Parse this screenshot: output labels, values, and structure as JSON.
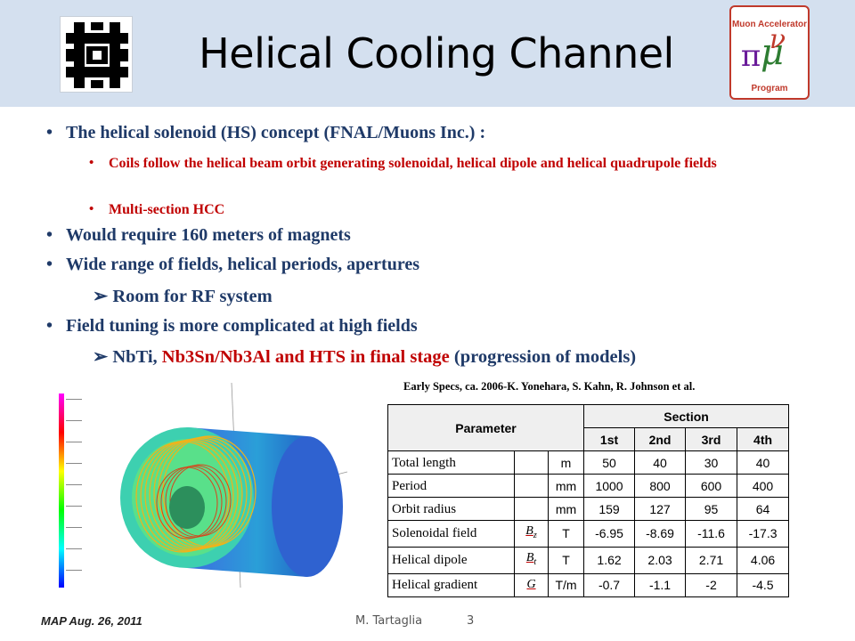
{
  "slide": {
    "title": "Helical Cooling Channel"
  },
  "logos": {
    "map_logo_text": "Muon Accelerator Program",
    "map_logo_symbols": "νπμ"
  },
  "content": {
    "b1": "The helical solenoid (HS) concept (FNAL/Muons Inc.) :",
    "b1_sub1": "Coils follow the helical beam orbit generating solenoidal, helical dipole and helical quadrupole fields",
    "b1_sub2": "Multi-section HCC",
    "b2": "Would require 160 meters of magnets",
    "b3": "Wide range of fields, helical periods, apertures",
    "b3_arrow": "Room for RF system",
    "b4": "Field tuning is more complicated at high fields",
    "b4_arrow_a": "NbTi, ",
    "b4_arrow_b": "Nb3Sn/Nb3Al and HTS in final stage",
    "b4_arrow_c": " (progression of models)"
  },
  "table": {
    "caption": "Early Specs, ca. 2006-K. Yonehara, S. Kahn, R. Johnson et al.",
    "param_header": "Parameter",
    "section_header": "Section",
    "sections": [
      "1st",
      "2nd",
      "3rd",
      "4th"
    ],
    "rows": [
      {
        "name": "Total length",
        "symbol": "",
        "unit": "m",
        "values": [
          "50",
          "40",
          "30",
          "40"
        ]
      },
      {
        "name": "Period",
        "symbol": "",
        "unit": "mm",
        "values": [
          "1000",
          "800",
          "600",
          "400"
        ]
      },
      {
        "name": "Orbit radius",
        "symbol": "",
        "unit": "mm",
        "values": [
          "159",
          "127",
          "95",
          "64"
        ]
      },
      {
        "name": "Solenoidal field",
        "symbol": "Bz",
        "unit": "T",
        "values": [
          "-6.95",
          "-8.69",
          "-11.6",
          "-17.3"
        ]
      },
      {
        "name": "Helical dipole",
        "symbol": "Bt",
        "unit": "T",
        "values": [
          "1.62",
          "2.03",
          "2.71",
          "4.06"
        ]
      },
      {
        "name": "Helical gradient",
        "symbol": "G",
        "unit": "T/m",
        "values": [
          "-0.7",
          "-1.1",
          "-2",
          "-4.5"
        ]
      }
    ]
  },
  "colors": {
    "header_bg": "#d4e0ef",
    "bullet_blue": "#1f3a68",
    "bullet_red": "#c00000"
  },
  "footer": {
    "left": "MAP Aug. 26, 2011",
    "center": "M. Tartaglia",
    "page": "3"
  }
}
